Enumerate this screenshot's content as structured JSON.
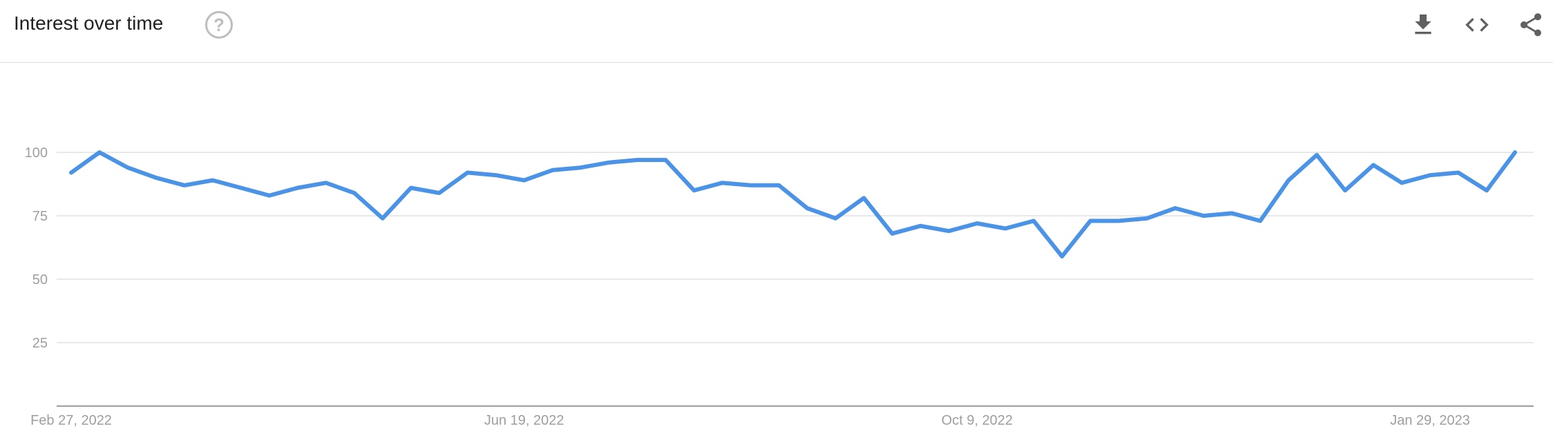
{
  "header": {
    "title": "Interest over time",
    "help_icon": "help-circle-icon",
    "actions": [
      "download-icon",
      "embed-code-icon",
      "share-icon"
    ]
  },
  "colors": {
    "line": "#4a93e6",
    "grid": "#e0e0e0",
    "axis": "#9e9e9e"
  },
  "chart_data": {
    "type": "line",
    "title": "",
    "xlabel": "",
    "ylabel": "",
    "x_start": "Feb 27, 2022",
    "x_interval": "weekly",
    "x_tick_labels": [
      {
        "label": "Feb 27, 2022",
        "index": 0
      },
      {
        "label": "Jun 19, 2022",
        "index": 16
      },
      {
        "label": "Oct 9, 2022",
        "index": 32
      },
      {
        "label": "Jan 29, 2023",
        "index": 48
      }
    ],
    "y_ticks": [
      25,
      50,
      75,
      100
    ],
    "ylim": [
      0,
      100
    ],
    "grid": true,
    "values": [
      92,
      100,
      94,
      90,
      87,
      89,
      86,
      83,
      86,
      88,
      84,
      74,
      86,
      84,
      92,
      91,
      89,
      93,
      94,
      96,
      97,
      97,
      85,
      88,
      87,
      87,
      78,
      74,
      82,
      68,
      71,
      69,
      72,
      70,
      73,
      59,
      73,
      73,
      74,
      78,
      75,
      76,
      73,
      89,
      99,
      85,
      95,
      88,
      91,
      92,
      85,
      100
    ]
  }
}
